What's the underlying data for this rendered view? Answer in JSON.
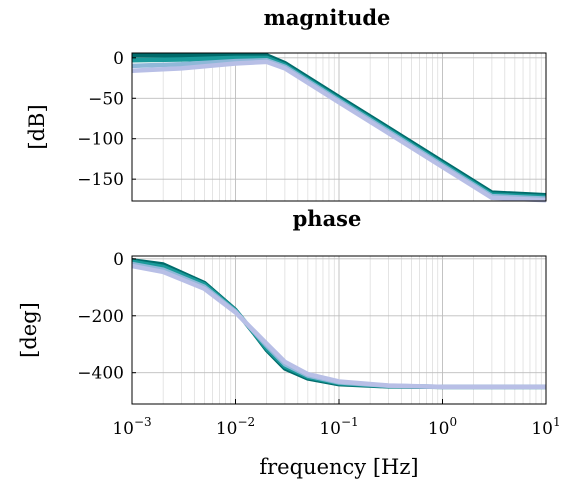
{
  "chart_data": [
    {
      "type": "line",
      "title": "magnitude",
      "xlabel": "",
      "ylabel": "[dB]",
      "xscale": "log",
      "xlim": [
        0.001,
        10
      ],
      "ylim": [
        -177,
        6
      ],
      "yticks": [
        0,
        -50,
        -100,
        -150
      ],
      "ytick_labels": [
        "0",
        "−50",
        "−100",
        "−150"
      ],
      "grid": true,
      "series": [
        {
          "color": "#006b6b",
          "x": [
            0.001,
            0.003,
            0.01,
            0.02,
            0.03,
            0.1,
            0.3,
            1,
            3,
            10
          ],
          "y": [
            3,
            3,
            3,
            3,
            -6.6,
            -48.5,
            -86.6,
            -128.5,
            -166.6,
            -170
          ]
        },
        {
          "color": "#1a9a9a",
          "x": [
            0.001,
            0.003,
            0.01,
            0.02,
            0.03,
            0.1,
            0.3,
            1,
            3,
            10
          ],
          "y": [
            -3,
            -2,
            0,
            0,
            -9,
            -51,
            -89,
            -131,
            -169,
            -172
          ]
        },
        {
          "color": "#8fb8d8",
          "x": [
            0.001,
            0.003,
            0.01,
            0.02,
            0.03,
            0.1,
            0.3,
            1,
            3,
            10
          ],
          "y": [
            -10,
            -8,
            -4,
            -3,
            -11,
            -53,
            -91,
            -133,
            -171,
            -174
          ]
        },
        {
          "color": "#b8bfe6",
          "x": [
            0.001,
            0.003,
            0.01,
            0.02,
            0.03,
            0.1,
            0.3,
            1,
            3,
            10
          ],
          "y": [
            -16,
            -13,
            -7,
            -5,
            -13,
            -55,
            -93,
            -135,
            -173,
            -176
          ]
        }
      ]
    },
    {
      "type": "line",
      "title": "phase",
      "xlabel": "frequency [Hz]",
      "ylabel": "[deg]",
      "xscale": "log",
      "xlim": [
        0.001,
        10
      ],
      "ylim": [
        -510,
        10
      ],
      "yticks": [
        0,
        -200,
        -400
      ],
      "ytick_labels": [
        "0",
        "−200",
        "−400"
      ],
      "xticks": [
        0.001,
        0.01,
        0.1,
        1,
        10
      ],
      "xtick_labels": [
        [
          "10",
          "−3"
        ],
        [
          "10",
          "−2"
        ],
        [
          "10",
          "−1"
        ],
        [
          "10",
          "0"
        ],
        [
          "10",
          "1"
        ]
      ],
      "grid": true,
      "series": [
        {
          "color": "#006b6b",
          "x": [
            0.001,
            0.002,
            0.005,
            0.01,
            0.015,
            0.02,
            0.03,
            0.05,
            0.1,
            0.3,
            1,
            10
          ],
          "y": [
            -5,
            -20,
            -85,
            -180,
            -260,
            -320,
            -385,
            -420,
            -440,
            -448,
            -450,
            -450
          ]
        },
        {
          "color": "#1a9a9a",
          "x": [
            0.001,
            0.002,
            0.005,
            0.01,
            0.015,
            0.02,
            0.03,
            0.05,
            0.1,
            0.3,
            1,
            10
          ],
          "y": [
            -10,
            -28,
            -90,
            -182,
            -258,
            -315,
            -378,
            -415,
            -437,
            -447,
            -450,
            -450
          ]
        },
        {
          "color": "#8fb8d8",
          "x": [
            0.001,
            0.002,
            0.005,
            0.01,
            0.015,
            0.02,
            0.03,
            0.05,
            0.1,
            0.3,
            1,
            10
          ],
          "y": [
            -18,
            -38,
            -98,
            -185,
            -255,
            -305,
            -370,
            -410,
            -434,
            -446,
            -450,
            -450
          ]
        },
        {
          "color": "#b8bfe6",
          "x": [
            0.001,
            0.002,
            0.005,
            0.01,
            0.015,
            0.02,
            0.03,
            0.05,
            0.1,
            0.3,
            1,
            10
          ],
          "y": [
            -25,
            -46,
            -105,
            -188,
            -252,
            -298,
            -362,
            -405,
            -431,
            -445,
            -450,
            -450
          ]
        }
      ]
    }
  ]
}
